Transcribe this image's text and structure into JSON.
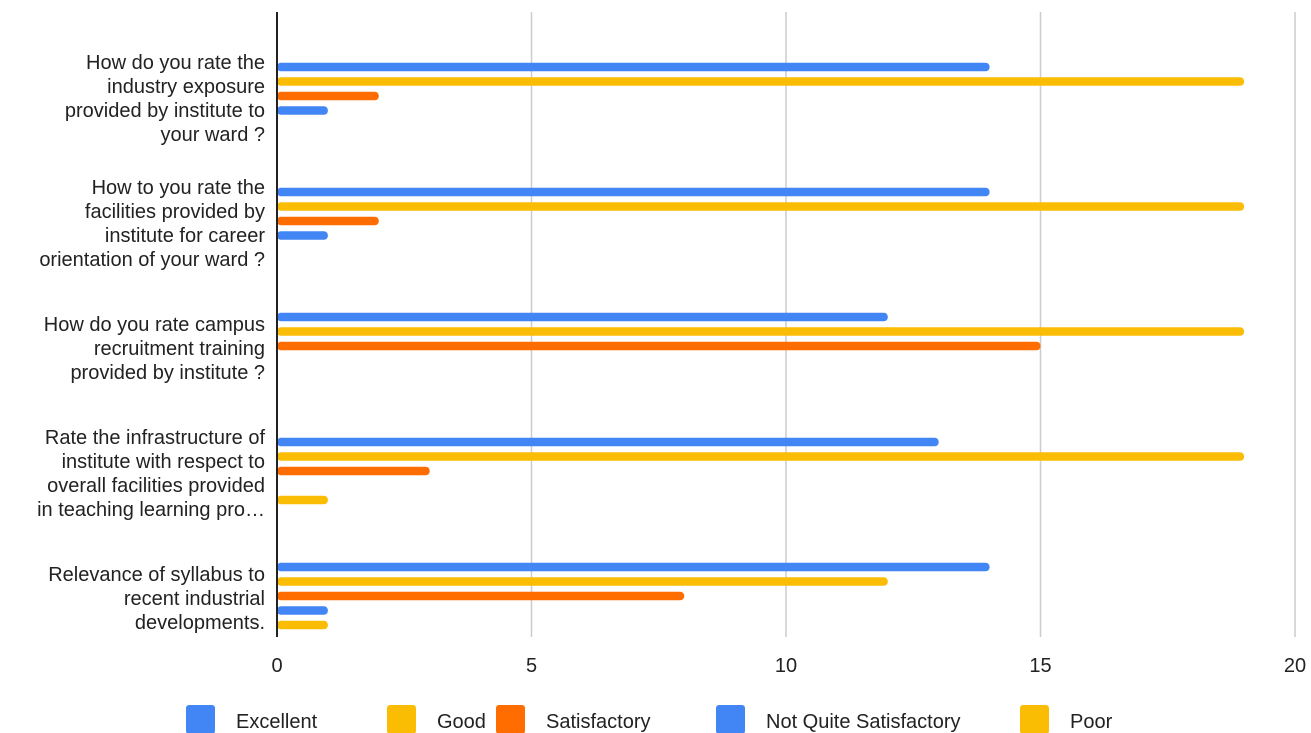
{
  "chart_data": {
    "type": "bar",
    "orientation": "horizontal",
    "title": "",
    "xlabel": "",
    "ylabel": "",
    "xlim": [
      0,
      20
    ],
    "x_ticks": [
      0,
      5,
      10,
      15,
      20
    ],
    "grid": true,
    "legend_position": "bottom",
    "categories": [
      [
        "How do you rate the",
        "industry exposure",
        "provided by institute to",
        "your ward ?"
      ],
      [
        "How to you rate the",
        "facilities provided by",
        "institute for career",
        "orientation of your ward ?"
      ],
      [
        "How do you rate campus",
        "recruitment training",
        "provided by institute ?"
      ],
      [
        "Rate the infrastructure of",
        "institute with respect to",
        "overall facilities provided",
        "in teaching learning pro…"
      ],
      [
        "Relevance of syllabus to",
        "recent industrial",
        "developments."
      ]
    ],
    "series": [
      {
        "name": "Excellent",
        "color": "#4285F4",
        "values": [
          14,
          14,
          12,
          13,
          14
        ]
      },
      {
        "name": "Good",
        "color": "#FBBC04",
        "values": [
          19,
          19,
          19,
          19,
          12
        ]
      },
      {
        "name": "Satisfactory",
        "color": "#FF6D01",
        "values": [
          2,
          2,
          15,
          3,
          8
        ]
      },
      {
        "name": "Not Quite Satisfactory",
        "color": "#4285F4",
        "values": [
          1,
          1,
          0,
          0,
          1
        ]
      },
      {
        "name": "Poor",
        "color": "#FBBC04",
        "values": [
          0,
          0,
          0,
          1,
          1
        ]
      }
    ]
  }
}
